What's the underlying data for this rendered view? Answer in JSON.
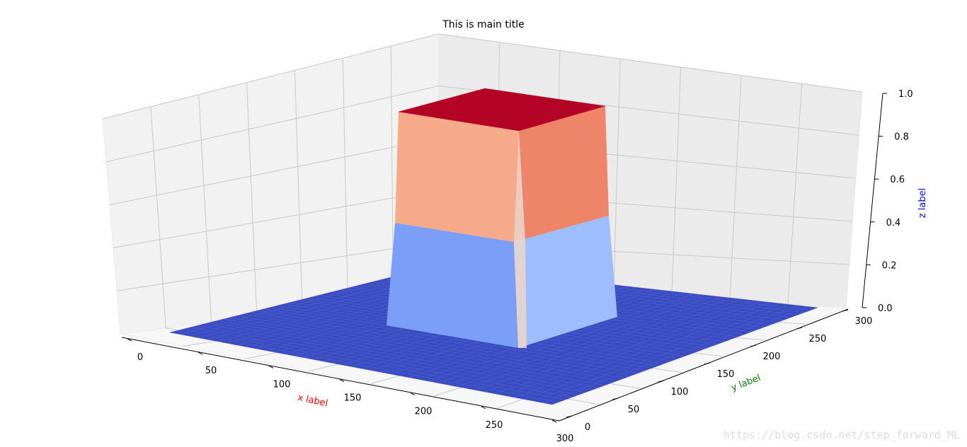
{
  "chart_data": {
    "type": "surface3d",
    "title": "This is main title",
    "xlabel": "x label",
    "ylabel": "y label",
    "zlabel": "z label",
    "xlabel_color": "#ff0000",
    "ylabel_color": "#008000",
    "zlabel_color": "#0000ff",
    "xlim": [
      0,
      300
    ],
    "ylim": [
      0,
      300
    ],
    "zlim": [
      0,
      1
    ],
    "x_ticks": [
      "0",
      "50",
      "100",
      "150",
      "200",
      "250",
      "300"
    ],
    "y_ticks": [
      "0",
      "50",
      "100",
      "150",
      "200",
      "250",
      "300"
    ],
    "z_ticks": [
      "0.0",
      "0.2",
      "0.4",
      "0.6",
      "0.8",
      "1.0"
    ],
    "colormap": "coolwarm",
    "surface": {
      "description": "square plateau of height 1 over a flat base of height 0",
      "plateau_x": [
        100,
        200
      ],
      "plateau_y": [
        100,
        200
      ],
      "plateau_z": 1.0,
      "base_z": 0.0
    },
    "grid": true
  },
  "watermark": "https://blog.csdn.net/step_forward_ML"
}
